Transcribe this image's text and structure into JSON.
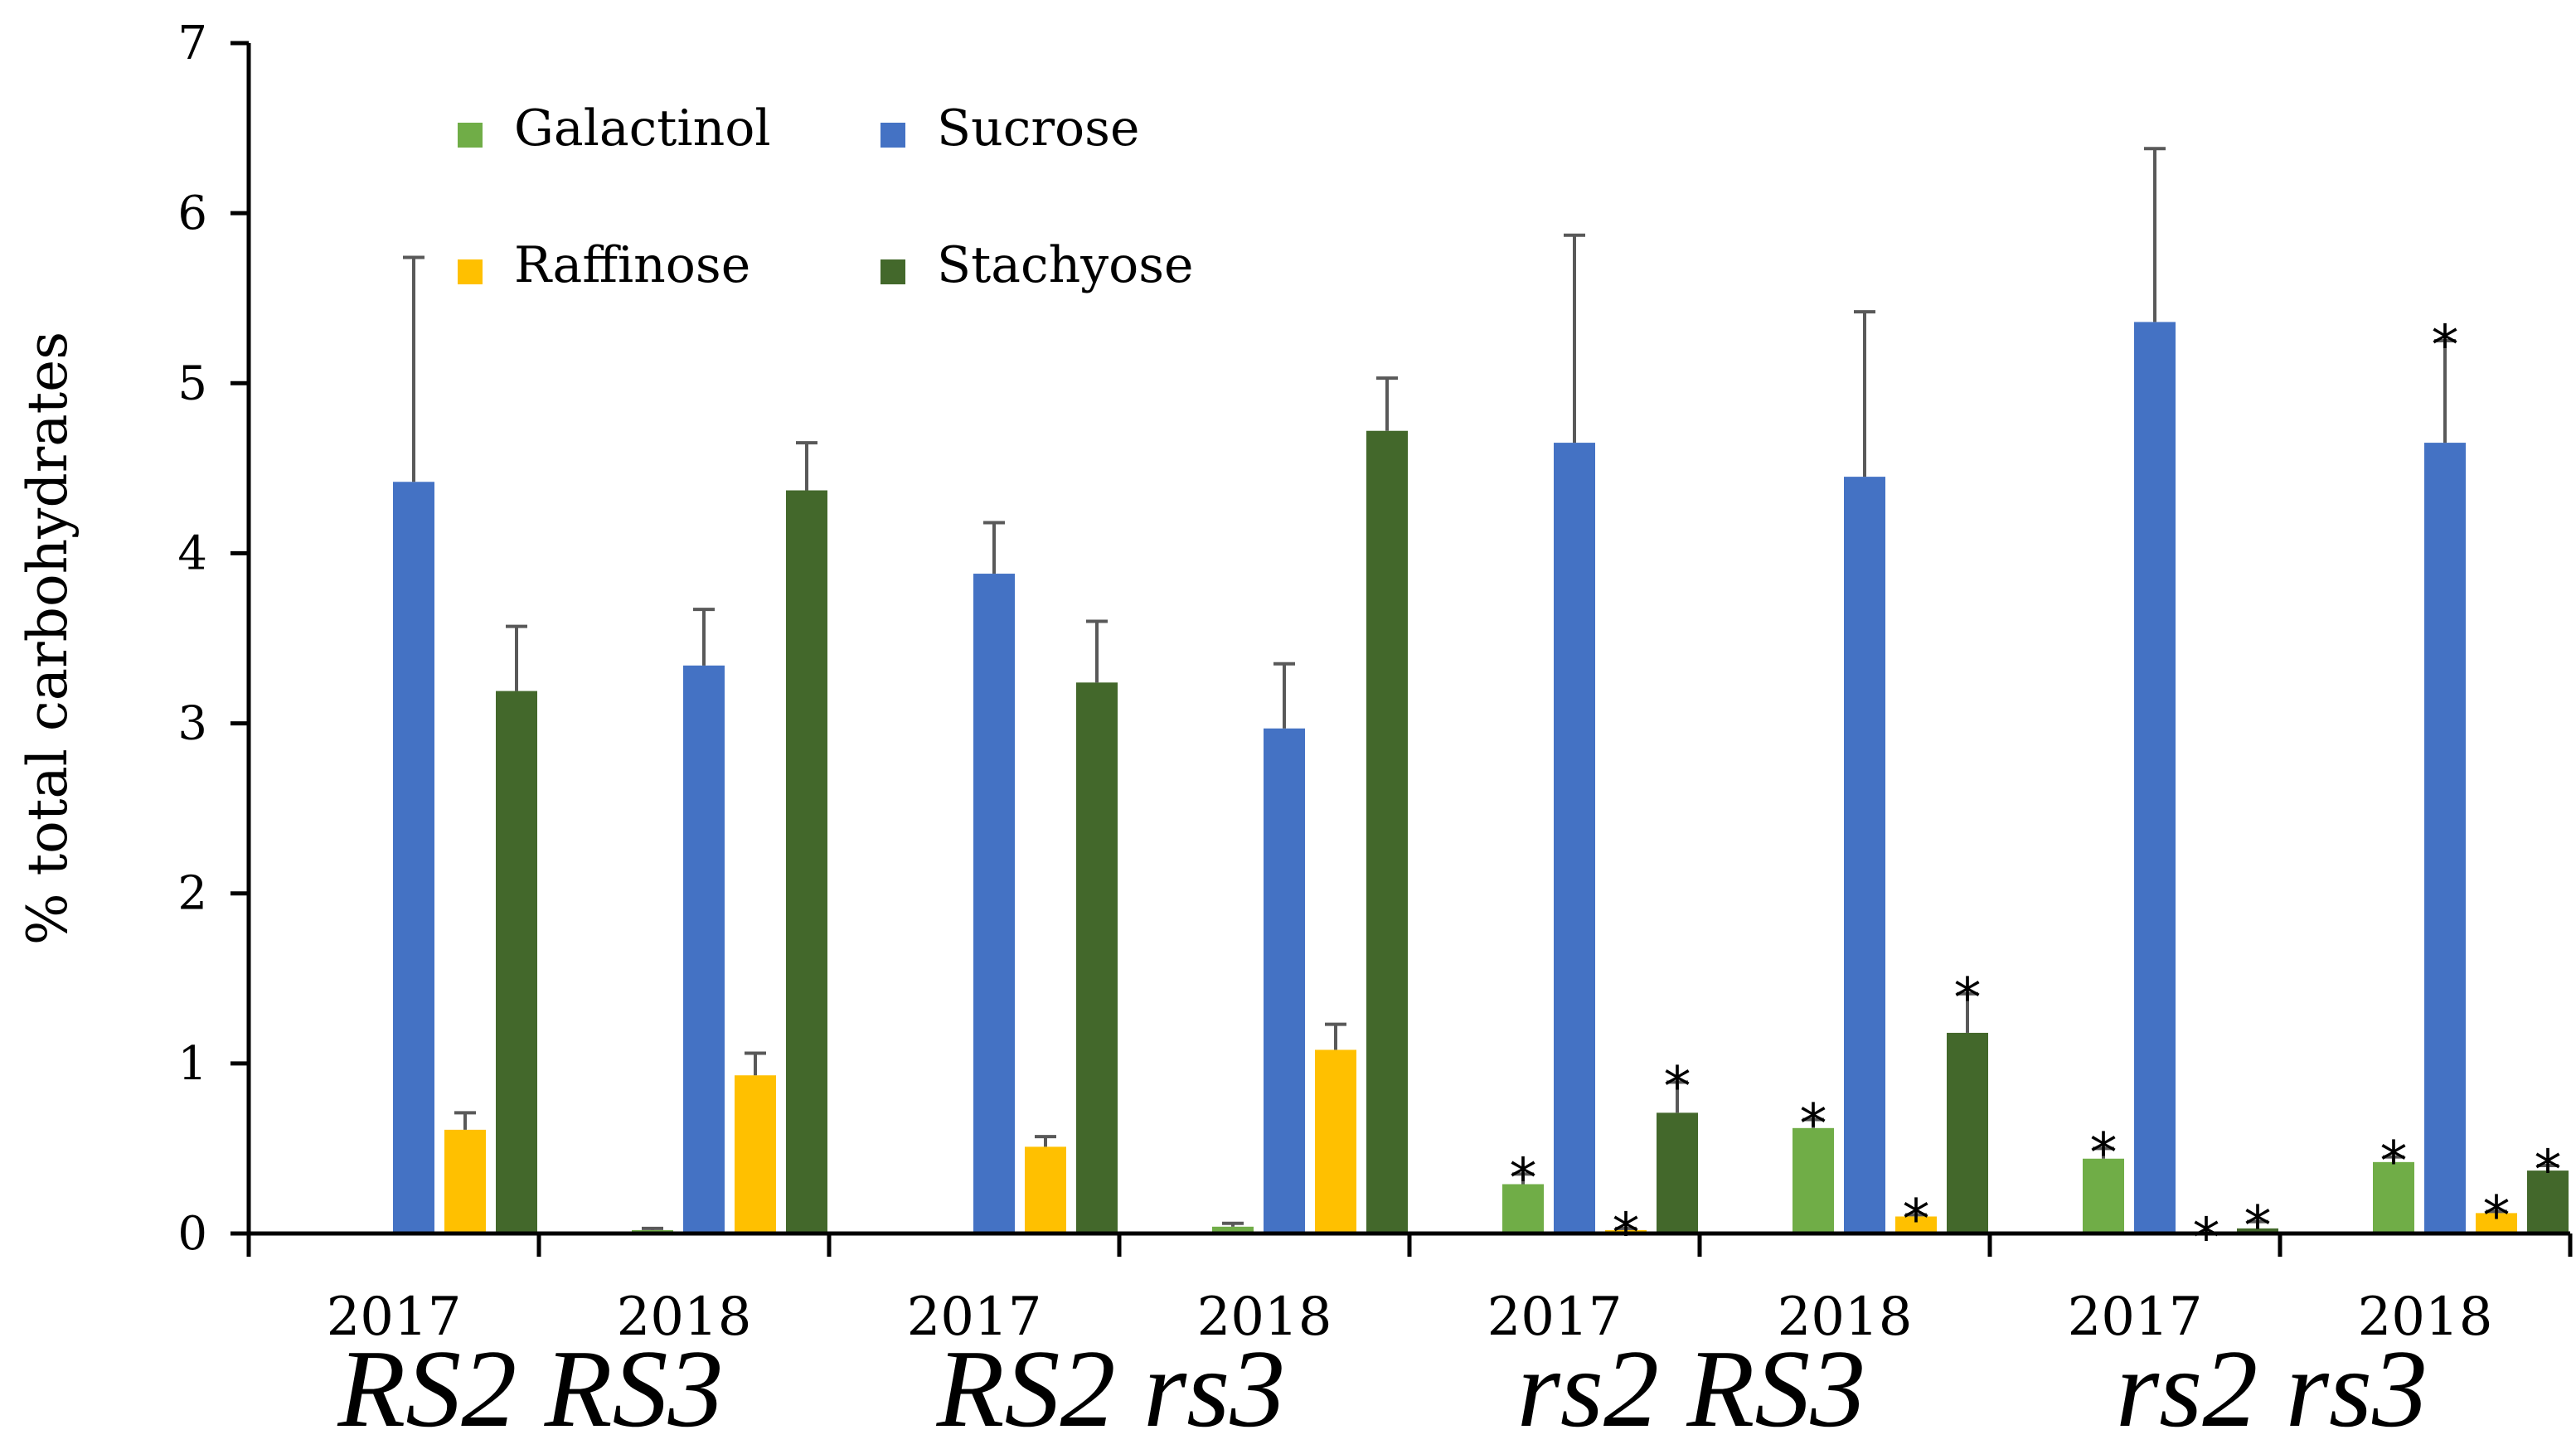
{
  "chart_data": {
    "type": "bar",
    "title": "",
    "xlabel": "",
    "ylabel": "% total carbohydrates",
    "ylim": [
      0,
      7
    ],
    "yticks": [
      0,
      1,
      2,
      3,
      4,
      5,
      6,
      7
    ],
    "grid": false,
    "legend_position": "top-left",
    "groups": [
      "RS2 RS3",
      "RS2 rs3",
      "rs2 RS3",
      "rs2 rs3"
    ],
    "categories": [
      "2017",
      "2018",
      "2017",
      "2018",
      "2017",
      "2018",
      "2017",
      "2018"
    ],
    "series": [
      {
        "name": "Galactinol",
        "color": "#70AD47",
        "values": [
          0,
          0.02,
          0,
          0.04,
          0.29,
          0.62,
          0.44,
          0.42
        ],
        "errors": [
          0,
          0.01,
          0,
          0.02,
          0.06,
          0.05,
          0.06,
          0.03
        ],
        "significant": [
          false,
          false,
          false,
          false,
          true,
          true,
          true,
          true
        ]
      },
      {
        "name": "Sucrose",
        "color": "#4472C4",
        "values": [
          4.42,
          3.34,
          3.88,
          2.97,
          4.65,
          4.45,
          5.36,
          4.65
        ],
        "errors": [
          1.32,
          0.33,
          0.3,
          0.38,
          1.22,
          0.97,
          1.02,
          0.6
        ],
        "significant": [
          false,
          false,
          false,
          false,
          false,
          false,
          false,
          true
        ]
      },
      {
        "name": "Raffinose",
        "color": "#FFC000",
        "values": [
          0.61,
          0.93,
          0.51,
          1.08,
          0.02,
          0.1,
          0,
          0.12
        ],
        "errors": [
          0.1,
          0.13,
          0.06,
          0.15,
          0.01,
          0.01,
          0,
          0.01
        ],
        "significant": [
          false,
          false,
          false,
          false,
          true,
          true,
          true,
          true
        ]
      },
      {
        "name": "Stachyose",
        "color": "#43682B",
        "values": [
          3.19,
          4.37,
          3.24,
          4.72,
          0.71,
          1.18,
          0.03,
          0.37
        ],
        "errors": [
          0.38,
          0.28,
          0.36,
          0.31,
          0.18,
          0.23,
          0.04,
          0.03
        ],
        "significant": [
          false,
          false,
          false,
          false,
          true,
          true,
          true,
          true
        ]
      }
    ],
    "annotation_symbol": "*"
  }
}
